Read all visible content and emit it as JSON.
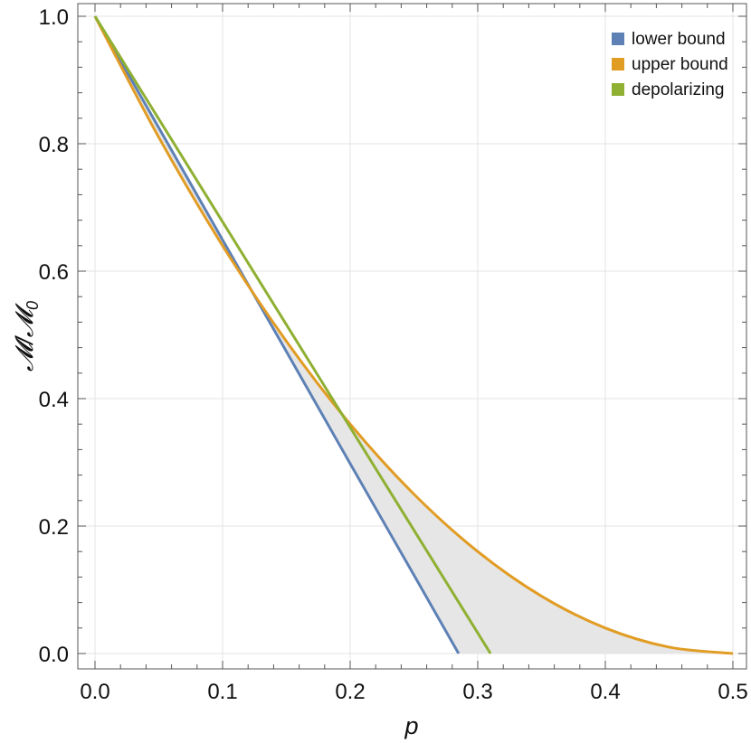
{
  "chart_data": {
    "type": "line",
    "xlabel": "p",
    "ylabel": "𝓜/𝓜",
    "ylabel_subscript": "0",
    "xlim": [
      0,
      0.5
    ],
    "ylim": [
      0,
      1
    ],
    "x_ticks": [
      0.0,
      0.1,
      0.2,
      0.3,
      0.4,
      0.5
    ],
    "x_tick_labels": [
      "0.0",
      "0.1",
      "0.2",
      "0.3",
      "0.4",
      "0.5"
    ],
    "y_ticks": [
      0.0,
      0.2,
      0.4,
      0.6,
      0.8,
      1.0
    ],
    "y_tick_labels": [
      "0.0",
      "0.2",
      "0.4",
      "0.6",
      "0.8",
      "1.0"
    ],
    "grid": true,
    "legend_position": "top-right",
    "shaded_region": {
      "between": [
        "lower bound",
        "upper bound"
      ],
      "color": "#e6e6e6"
    },
    "series": [
      {
        "name": "lower bound",
        "color": "#5e81b5",
        "x": [
          0.0,
          0.05,
          0.1,
          0.15,
          0.2,
          0.25,
          0.285
        ],
        "y": [
          1.0,
          0.825,
          0.649,
          0.474,
          0.298,
          0.123,
          0.0
        ]
      },
      {
        "name": "upper bound",
        "color": "#e19c24",
        "x": [
          0.0,
          0.05,
          0.1,
          0.15,
          0.2,
          0.25,
          0.3,
          0.35,
          0.4,
          0.45,
          0.5
        ],
        "y": [
          1.0,
          0.81,
          0.64,
          0.49,
          0.36,
          0.25,
          0.16,
          0.09,
          0.04,
          0.01,
          0.0
        ]
      },
      {
        "name": "depolarizing",
        "color": "#8fb032",
        "x": [
          0.0,
          0.05,
          0.1,
          0.15,
          0.2,
          0.25,
          0.31
        ],
        "y": [
          1.0,
          0.8387,
          0.6774,
          0.5161,
          0.3548,
          0.1935,
          0.0
        ]
      }
    ]
  }
}
